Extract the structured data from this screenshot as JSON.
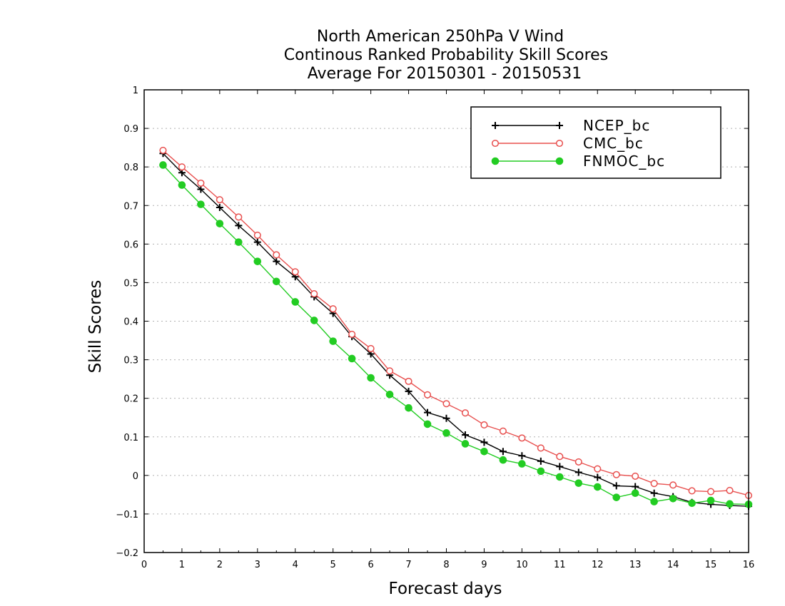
{
  "chart_data": {
    "type": "line",
    "title": [
      "North American 250hPa V Wind",
      "Continous Ranked Probability Skill Scores",
      "Average For 20150301 - 20150531"
    ],
    "xlabel": "Forecast days",
    "ylabel": "Skill Scores",
    "xlim": [
      0,
      16
    ],
    "ylim": [
      -0.2,
      1
    ],
    "xticks": [
      0,
      1,
      2,
      3,
      4,
      5,
      6,
      7,
      8,
      9,
      10,
      11,
      12,
      13,
      14,
      15,
      16
    ],
    "yticks": [
      -0.2,
      -0.1,
      0,
      0.1,
      0.2,
      0.3,
      0.4,
      0.5,
      0.6,
      0.7,
      0.8,
      0.9,
      1
    ],
    "ytick_labels": [
      "−0.2",
      "−0.1",
      "0",
      "0.1",
      "0.2",
      "0.3",
      "0.4",
      "0.5",
      "0.6",
      "0.7",
      "0.8",
      "0.9",
      "1"
    ],
    "grid": "horizontal-dotted",
    "legend_position": "top-right",
    "x": [
      0.5,
      1.0,
      1.5,
      2.0,
      2.5,
      3.0,
      3.5,
      4.0,
      4.5,
      5.0,
      5.5,
      6.0,
      6.5,
      7.0,
      7.5,
      8.0,
      8.5,
      9.0,
      9.5,
      10.0,
      10.5,
      11.0,
      11.5,
      12.0,
      12.5,
      13.0,
      13.5,
      14.0,
      14.5,
      15.0,
      15.5,
      16.0
    ],
    "series": [
      {
        "name": "NCEP_bc",
        "color": "#000000",
        "marker": "plus",
        "values": [
          0.835,
          0.785,
          0.742,
          0.695,
          0.648,
          0.605,
          0.555,
          0.515,
          0.463,
          0.42,
          0.36,
          0.315,
          0.26,
          0.218,
          0.163,
          0.148,
          0.105,
          0.086,
          0.062,
          0.051,
          0.037,
          0.023,
          0.008,
          -0.005,
          -0.027,
          -0.029,
          -0.046,
          -0.055,
          -0.07,
          -0.075,
          -0.078,
          -0.08
        ]
      },
      {
        "name": "CMC_bc",
        "color": "#e8504f",
        "marker": "open-circle",
        "values": [
          0.843,
          0.8,
          0.758,
          0.715,
          0.67,
          0.623,
          0.572,
          0.528,
          0.471,
          0.432,
          0.366,
          0.329,
          0.271,
          0.244,
          0.209,
          0.186,
          0.162,
          0.131,
          0.115,
          0.097,
          0.071,
          0.049,
          0.035,
          0.017,
          0.002,
          -0.002,
          -0.021,
          -0.025,
          -0.04,
          -0.042,
          -0.039,
          -0.052
        ]
      },
      {
        "name": "FNMOC_bc",
        "color": "#22cc22",
        "marker": "filled-circle",
        "values": [
          0.805,
          0.753,
          0.703,
          0.653,
          0.605,
          0.555,
          0.503,
          0.45,
          0.402,
          0.348,
          0.303,
          0.253,
          0.21,
          0.175,
          0.133,
          0.11,
          0.082,
          0.062,
          0.04,
          0.03,
          0.011,
          -0.004,
          -0.02,
          -0.03,
          -0.057,
          -0.046,
          -0.068,
          -0.06,
          -0.072,
          -0.065,
          -0.074,
          -0.075
        ]
      }
    ]
  }
}
